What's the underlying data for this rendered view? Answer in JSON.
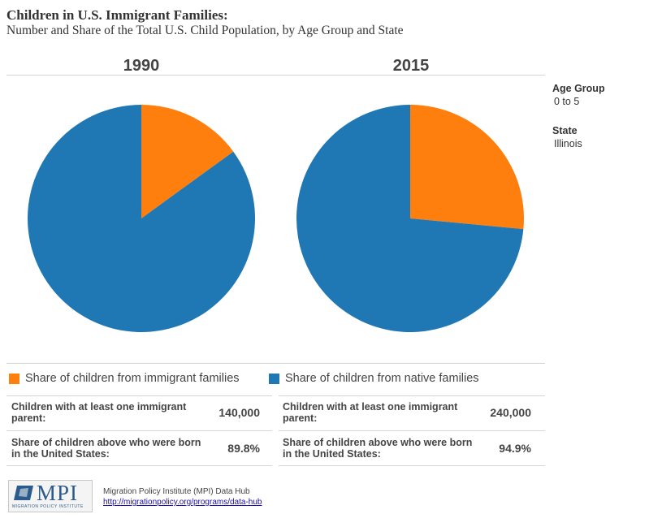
{
  "header": {
    "title": "Children in U.S. Immigrant Families:",
    "subtitle": "Number and Share of the Total U.S. Child Population, by Age Group and State"
  },
  "filters": {
    "age_group_label": "Age Group",
    "age_group_value": "0 to 5",
    "state_label": "State",
    "state_value": "Illinois"
  },
  "colors": {
    "immigrant": "#ff7f0e",
    "native": "#1f77b4"
  },
  "chart_data": [
    {
      "type": "pie",
      "title": "1990",
      "categories": [
        "Share of children from immigrant families",
        "Share of children from native families"
      ],
      "values": [
        0.15,
        0.85
      ]
    },
    {
      "type": "pie",
      "title": "2015",
      "categories": [
        "Share of children from immigrant families",
        "Share of children from native families"
      ],
      "values": [
        0.265,
        0.735
      ]
    }
  ],
  "legend": {
    "immigrant": "Share of children from immigrant families",
    "native": "Share of children from native families"
  },
  "stats": [
    {
      "immigrant_parent_label": "Children with at least one immigrant parent:",
      "immigrant_parent_value": "140,000",
      "born_us_label": "Share of children above who were born in the United States:",
      "born_us_value": "89.8%"
    },
    {
      "immigrant_parent_label": "Children with at least one immigrant parent:",
      "immigrant_parent_value": "240,000",
      "born_us_label": "Share of children above who were born in the United States:",
      "born_us_value": "94.9%"
    }
  ],
  "footer": {
    "logo_text": "MPI",
    "logo_subtext": "MIGRATION POLICY INSTITUTE",
    "credit": "Migration Policy Institute (MPI) Data Hub",
    "link": "http://migrationpolicy.org/programs/data-hub"
  }
}
